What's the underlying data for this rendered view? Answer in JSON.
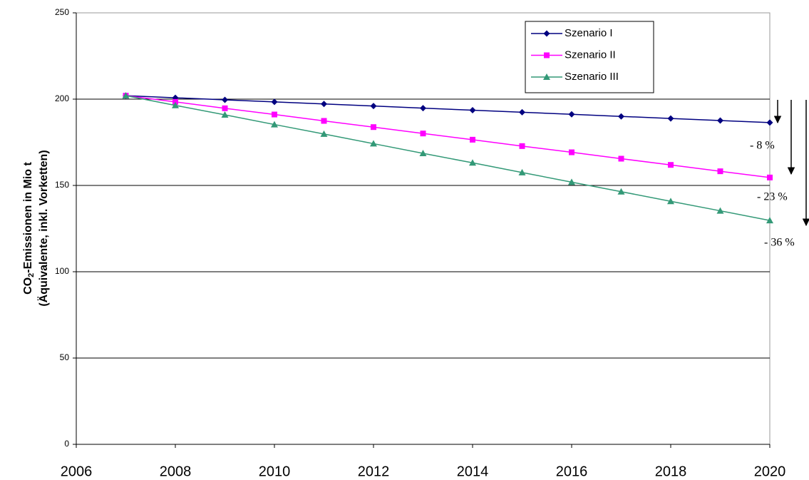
{
  "chart_data": {
    "type": "line",
    "ylabel": [
      "CO₂-Emissionen in Mio t",
      "(Äquivalente, inkl. Vorketten)"
    ],
    "x": [
      2007,
      2008,
      2009,
      2010,
      2011,
      2012,
      2013,
      2014,
      2015,
      2016,
      2017,
      2018,
      2019,
      2020
    ],
    "series": [
      {
        "name": "Szenario I",
        "color": "#000080",
        "marker": "diamond",
        "values": [
          202,
          200.8,
          199.6,
          198.4,
          197.2,
          196,
          194.8,
          193.6,
          192.4,
          191.2,
          190,
          188.8,
          187.6,
          186.4
        ]
      },
      {
        "name": "Szenario II",
        "color": "#ff00ff",
        "marker": "square",
        "values": [
          202,
          198.4,
          194.7,
          191.1,
          187.4,
          183.8,
          180.1,
          176.5,
          172.8,
          169.2,
          165.5,
          161.9,
          158.2,
          154.6
        ]
      },
      {
        "name": "Szenario III",
        "color": "#339977",
        "marker": "triangle",
        "values": [
          202,
          196.4,
          190.9,
          185.3,
          179.8,
          174.2,
          168.6,
          163.1,
          157.5,
          151.9,
          146.4,
          140.8,
          135.3,
          129.7
        ]
      }
    ],
    "xlim": [
      2006,
      2020
    ],
    "xticks": [
      2006,
      2008,
      2010,
      2012,
      2014,
      2016,
      2018,
      2020
    ],
    "ylim": [
      0,
      250
    ],
    "yticks": [
      0,
      50,
      100,
      150,
      200,
      250
    ],
    "grid": true,
    "legend": "upper right",
    "annotations": [
      "- 8 %",
      "- 23 %",
      "- 36 %"
    ]
  }
}
